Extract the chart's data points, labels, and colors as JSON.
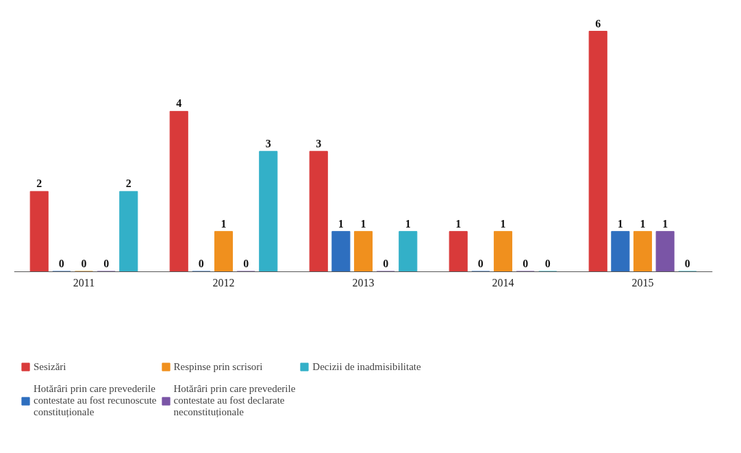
{
  "chart_data": {
    "type": "bar",
    "categories": [
      "2011",
      "2012",
      "2013",
      "2014",
      "2015"
    ],
    "series": [
      {
        "name": "Sesizări",
        "color": "#d93a3a",
        "values": [
          2,
          4,
          3,
          1,
          6
        ]
      },
      {
        "name": "Hotărâri prin care prevederile contestate au fost recunoscute constituționale",
        "color": "#2e6fbf",
        "values": [
          0,
          0,
          1,
          0,
          1
        ]
      },
      {
        "name": "Respinse prin scrisori",
        "color": "#f0901e",
        "values": [
          0,
          1,
          1,
          1,
          1
        ]
      },
      {
        "name": "Hotărâri prin care prevederile contestate au fost declarate neconstituționale",
        "color": "#7a55a6",
        "values": [
          0,
          0,
          0,
          0,
          1
        ]
      },
      {
        "name": "Decizii de inadmisibilitate",
        "color": "#33b0c8",
        "values": [
          2,
          3,
          1,
          0,
          0
        ]
      }
    ],
    "data_labels": true,
    "grid": false,
    "legend": "bottom"
  }
}
